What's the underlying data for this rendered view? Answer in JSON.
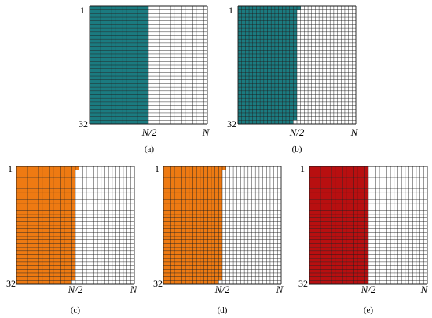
{
  "figure": {
    "colors": {
      "teal": "#1b7b80",
      "orange": "#ee7a12",
      "red": "#b80f10",
      "grid_line": "#1a1a1a",
      "empty_cell": "#ffffff"
    },
    "grid": {
      "rows": 32,
      "cols": 32
    },
    "panels": [
      {
        "id": "a",
        "caption": "(a)",
        "row_top_label": "1",
        "row_bottom_label": "32",
        "col_mid_label": "N/2",
        "col_end_label": "N",
        "fill_color_name": "teal",
        "filled_columns": 16,
        "extra_filled_cells": [],
        "removed_cells": []
      },
      {
        "id": "b",
        "caption": "(b)",
        "row_top_label": "1",
        "row_bottom_label": "32",
        "col_mid_label": "N/2",
        "col_end_label": "N",
        "fill_color_name": "teal",
        "filled_columns": 16,
        "extra_filled_cells": [
          [
            1,
            17
          ]
        ],
        "removed_cells": [
          [
            32,
            16
          ]
        ]
      },
      {
        "id": "c",
        "caption": "(c)",
        "row_top_label": "1",
        "row_bottom_label": "32",
        "col_mid_label": "N/2",
        "col_end_label": "N",
        "fill_color_name": "orange",
        "filled_columns": 16,
        "extra_filled_cells": [
          [
            1,
            17
          ]
        ],
        "removed_cells": [
          [
            32,
            16
          ]
        ]
      },
      {
        "id": "d",
        "caption": "(d)",
        "row_top_label": "1",
        "row_bottom_label": "32",
        "col_mid_label": "N/2",
        "col_end_label": "N",
        "fill_color_name": "orange",
        "filled_columns": 16,
        "extra_filled_cells": [
          [
            1,
            17
          ]
        ],
        "removed_cells": [
          [
            32,
            16
          ]
        ]
      },
      {
        "id": "e",
        "caption": "(e)",
        "row_top_label": "1",
        "row_bottom_label": "32",
        "col_mid_label": "N/2",
        "col_end_label": "N",
        "fill_color_name": "red",
        "filled_columns": 16,
        "extra_filled_cells": [],
        "removed_cells": []
      }
    ]
  }
}
